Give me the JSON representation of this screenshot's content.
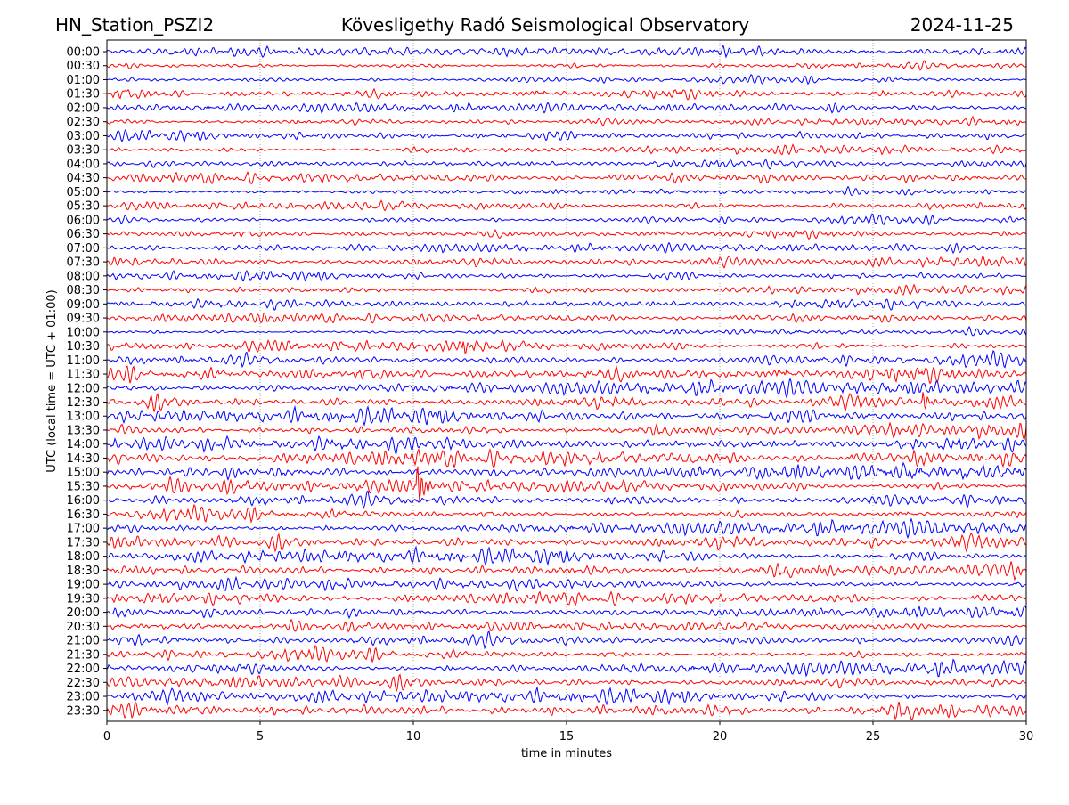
{
  "header": {
    "station": "HN_Station_PSZI2",
    "observatory": "Kövesligethy Radó Seismological Observatory",
    "date": "2024-11-25"
  },
  "chart_data": {
    "type": "line",
    "title": "Kövesligethy Radó Seismological Observatory",
    "xlabel": "time in minutes",
    "ylabel": "UTC (local time = UTC + 01:00)",
    "xlim": [
      0,
      30
    ],
    "xticks": [
      "0",
      "5",
      "10",
      "15",
      "20",
      "25",
      "30"
    ],
    "grid": "vertical dotted at x ticks",
    "series_colors": [
      "#0000ff",
      "#ff0000"
    ],
    "rows": [
      "00:00",
      "00:30",
      "01:00",
      "01:30",
      "02:00",
      "02:30",
      "03:00",
      "03:30",
      "04:00",
      "04:30",
      "05:00",
      "05:30",
      "06:00",
      "06:30",
      "07:00",
      "07:30",
      "08:00",
      "08:30",
      "09:00",
      "09:30",
      "10:00",
      "10:30",
      "11:00",
      "11:30",
      "12:00",
      "12:30",
      "13:00",
      "13:30",
      "14:00",
      "14:30",
      "15:00",
      "15:30",
      "16:00",
      "16:30",
      "17:00",
      "17:30",
      "18:00",
      "18:30",
      "19:00",
      "19:30",
      "20:00",
      "20:30",
      "21:00",
      "21:30",
      "22:00",
      "22:30",
      "23:00",
      "23:30"
    ],
    "events": [
      {
        "row": "15:30",
        "minute": 10.1,
        "note": "largest spike"
      },
      {
        "row": "10:30",
        "minute": 11.6
      },
      {
        "row": "12:30",
        "minute": 26.6
      }
    ]
  }
}
